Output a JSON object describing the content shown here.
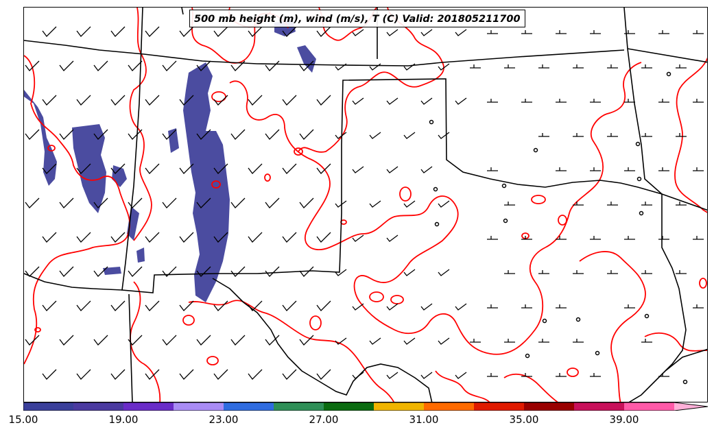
{
  "title": "500 mb height (m), wind (m/s), T (C) Valid: 201805211700",
  "colorbar": {
    "colors": [
      "#3a3f9a",
      "#4b3aa0",
      "#6a2cc8",
      "#a98cf5",
      "#2f6ce0",
      "#2e8f57",
      "#0a6b10",
      "#f0b400",
      "#ff6a00",
      "#e01a00",
      "#990000",
      "#c8105a",
      "#ff5aa8",
      "#ffb0d8"
    ],
    "tick_labels": [
      "15.00",
      "19.00",
      "23.00",
      "27.00",
      "31.00",
      "35.00",
      "39.00"
    ]
  },
  "legend_colors": {
    "contour": "#ff0000",
    "boundary": "#000000",
    "shading": "#4b4ca0"
  }
}
